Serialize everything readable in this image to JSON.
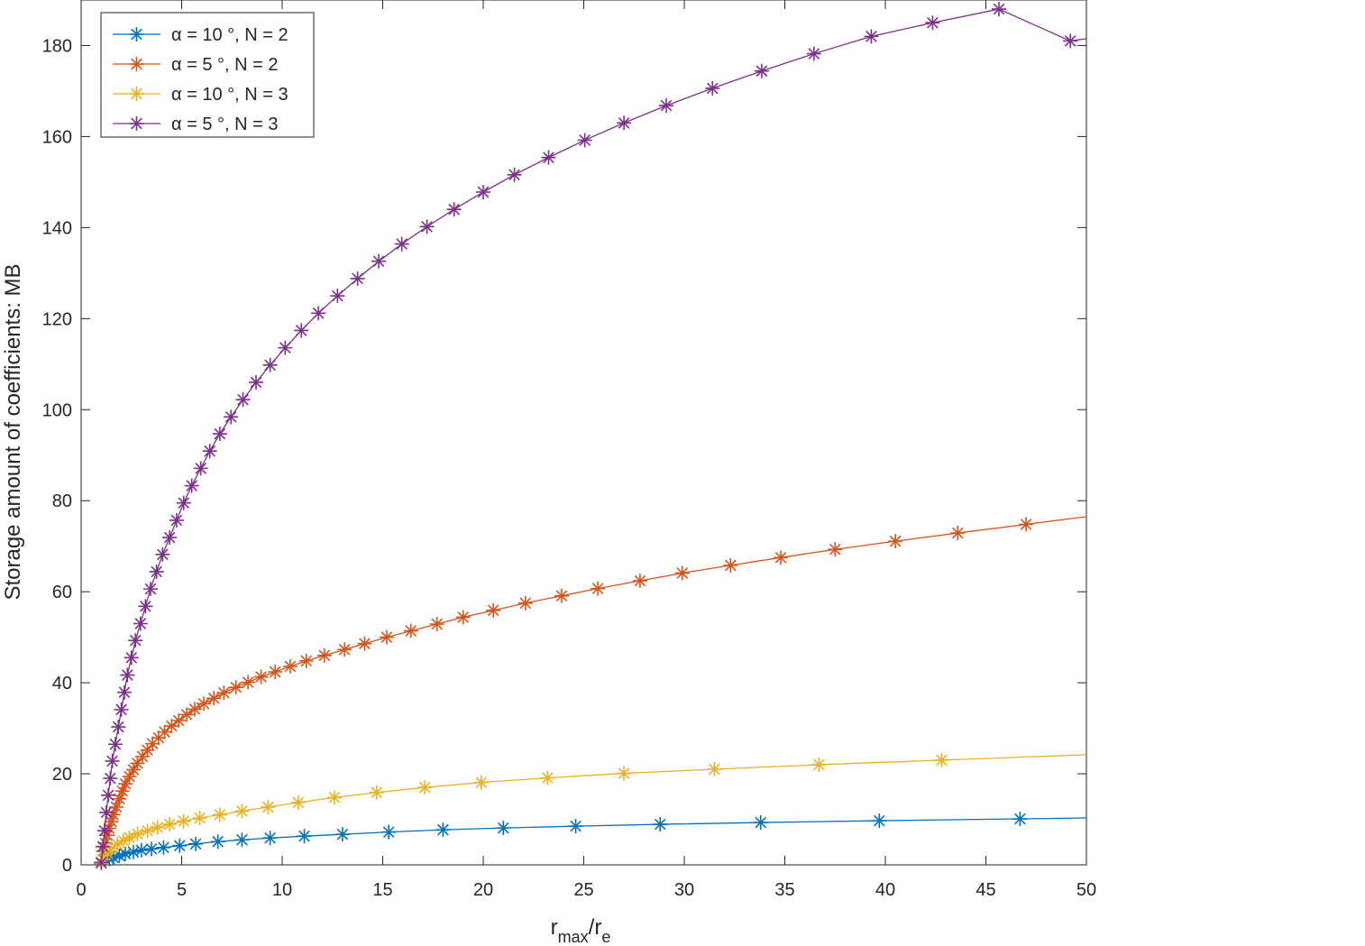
{
  "chart_data": {
    "type": "line",
    "xlabel": {
      "main": "r",
      "sub1": "max",
      "mid": "/r",
      "sub2": "e"
    },
    "ylabel": "Storage amount of coefficients: MB",
    "xlim": [
      0,
      50
    ],
    "ylim": [
      0,
      190
    ],
    "xticks": [
      0,
      5,
      10,
      15,
      20,
      25,
      30,
      35,
      40,
      45,
      50
    ],
    "yticks": [
      0,
      20,
      40,
      60,
      80,
      100,
      120,
      140,
      160,
      180
    ],
    "grid": false,
    "legend_position": "top-left",
    "series": [
      {
        "name": "α = 10 °, N = 2",
        "color": "#0072BD",
        "x": [
          1,
          1.2,
          1.4,
          1.6,
          1.9,
          2.2,
          2.6,
          3.0,
          3.5,
          4.1,
          4.9,
          5.7,
          6.8,
          8.0,
          9.4,
          11.1,
          13.0,
          15.3,
          18.0,
          21.0,
          24.6,
          28.8,
          33.8,
          39.7,
          46.7,
          50
        ],
        "y": [
          0.3,
          0.9,
          1.3,
          1.6,
          2.0,
          2.4,
          2.8,
          3.2,
          3.5,
          3.8,
          4.2,
          4.6,
          5.1,
          5.5,
          5.9,
          6.3,
          6.7,
          7.2,
          7.7,
          8.1,
          8.5,
          8.9,
          9.3,
          9.7,
          10.1,
          10.3
        ]
      },
      {
        "name": "α = 5 °, N = 2",
        "color": "#D95319",
        "x": [
          1,
          1.1,
          1.2,
          1.3,
          1.4,
          1.5,
          1.6,
          1.75,
          1.9,
          2.05,
          2.2,
          2.4,
          2.6,
          2.8,
          3.05,
          3.3,
          3.55,
          3.85,
          4.15,
          4.5,
          4.85,
          5.25,
          5.65,
          6.1,
          6.6,
          7.1,
          7.7,
          8.3,
          8.95,
          9.65,
          10.4,
          11.2,
          12.1,
          13.1,
          14.1,
          15.2,
          16.4,
          17.7,
          19.0,
          20.5,
          22.1,
          23.9,
          25.7,
          27.8,
          29.9,
          32.3,
          34.8,
          37.5,
          40.5,
          43.6,
          47.0,
          50
        ],
        "y": [
          0.5,
          3.0,
          4.8,
          6.5,
          8.0,
          9.5,
          11.0,
          12.7,
          14.5,
          16.2,
          17.8,
          19.4,
          20.9,
          22.3,
          23.8,
          25.2,
          26.6,
          27.9,
          29.2,
          30.5,
          31.7,
          33.0,
          34.2,
          35.4,
          36.6,
          37.8,
          39.0,
          40.1,
          41.3,
          42.4,
          43.6,
          44.8,
          46.0,
          47.3,
          48.6,
          50.0,
          51.4,
          52.9,
          54.4,
          55.9,
          57.5,
          59.1,
          60.7,
          62.4,
          64.1,
          65.8,
          67.5,
          69.3,
          71.1,
          72.9,
          74.8,
          76.5
        ]
      },
      {
        "name": "α = 10 °, N = 3",
        "color": "#EDB120",
        "x": [
          1,
          1.1,
          1.3,
          1.5,
          1.8,
          2.1,
          2.4,
          2.8,
          3.3,
          3.8,
          4.4,
          5.1,
          5.9,
          6.9,
          8.0,
          9.3,
          10.8,
          12.6,
          14.7,
          17.1,
          19.9,
          23.2,
          27.0,
          31.5,
          36.7,
          42.8,
          50
        ],
        "y": [
          0.3,
          1.2,
          2.6,
          3.6,
          4.5,
          5.3,
          6.0,
          6.8,
          7.5,
          8.2,
          8.9,
          9.6,
          10.3,
          11.0,
          11.8,
          12.7,
          13.7,
          14.8,
          15.9,
          17.0,
          18.1,
          19.1,
          20.1,
          21.0,
          22.0,
          23.0,
          24.2
        ]
      },
      {
        "name": "α = 5 °, N = 3",
        "color": "#7E2F8E",
        "x": [
          1,
          1.08,
          1.16,
          1.25,
          1.35,
          1.45,
          1.55,
          1.7,
          1.85,
          2.0,
          2.15,
          2.3,
          2.5,
          2.7,
          2.95,
          3.2,
          3.45,
          3.75,
          4.05,
          4.4,
          4.75,
          5.1,
          5.5,
          5.95,
          6.4,
          6.9,
          7.45,
          8.05,
          8.7,
          9.4,
          10.15,
          10.95,
          11.8,
          12.75,
          13.75,
          14.8,
          15.95,
          17.2,
          18.55,
          20.0,
          21.55,
          23.25,
          25.05,
          27.0,
          29.1,
          31.4,
          33.85,
          36.45,
          39.3,
          42.35,
          45.65,
          49.2,
          50
        ],
        "y": [
          0.5,
          4.0,
          7.5,
          11.5,
          15.3,
          19.0,
          22.8,
          26.5,
          30.3,
          34.1,
          37.9,
          41.7,
          45.5,
          49.3,
          53.0,
          56.8,
          60.6,
          64.4,
          68.2,
          71.9,
          75.7,
          79.5,
          83.3,
          87.1,
          90.9,
          94.7,
          98.4,
          102.2,
          106.0,
          109.8,
          113.6,
          117.4,
          121.2,
          125.0,
          128.8,
          132.6,
          136.4,
          140.2,
          144.0,
          147.8,
          151.6,
          155.4,
          159.2,
          163.0,
          166.8,
          170.6,
          174.4,
          178.2,
          182.0,
          185.0,
          188.0,
          181.0,
          181.5
        ]
      }
    ]
  }
}
